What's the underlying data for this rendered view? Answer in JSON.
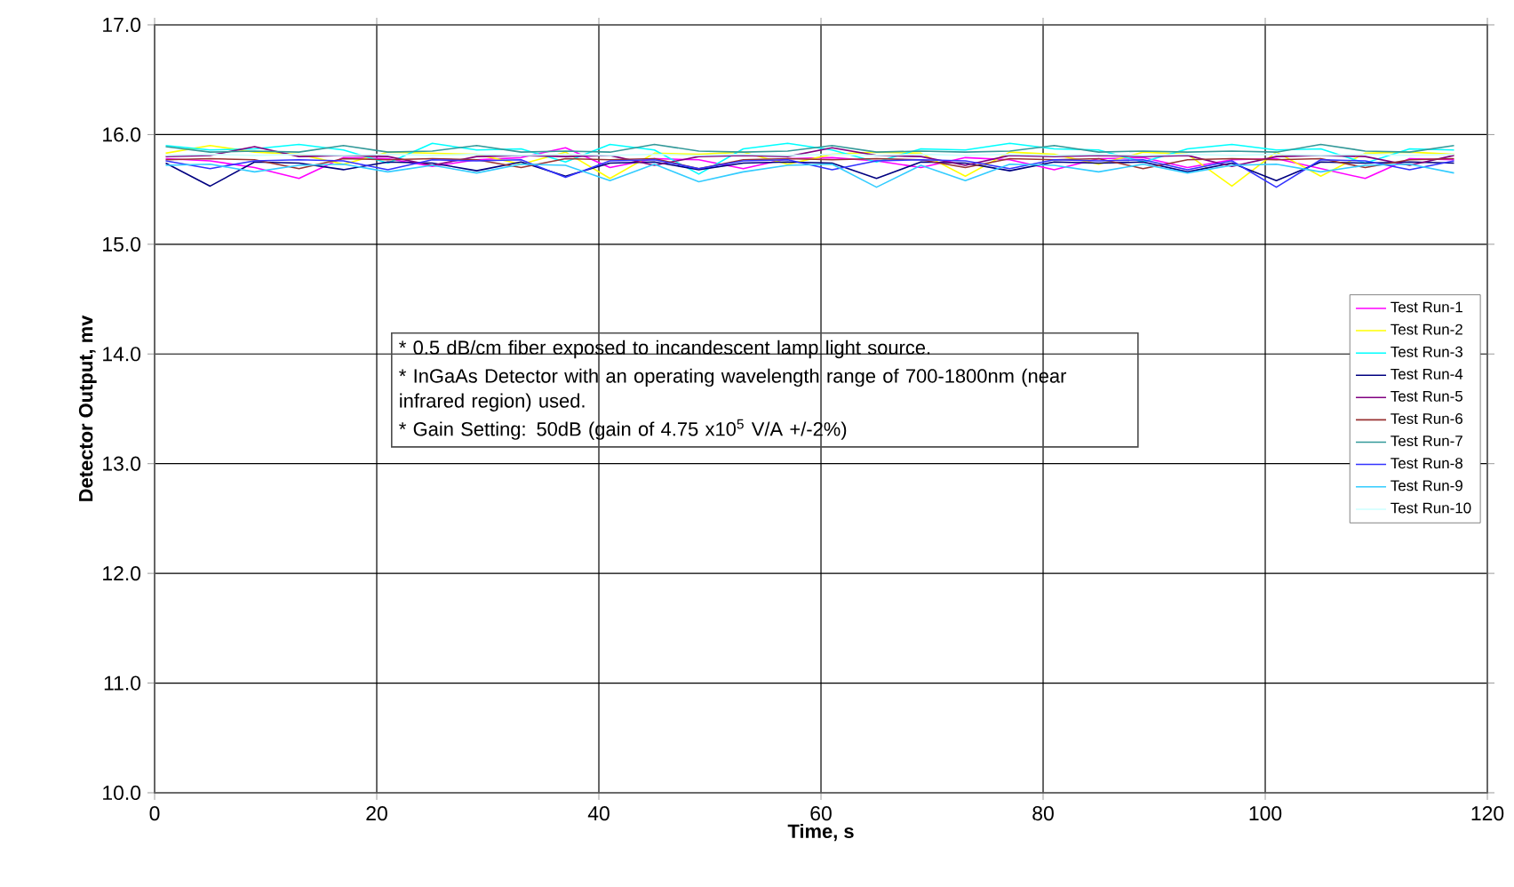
{
  "chart_data": {
    "type": "line",
    "xlabel": "Time, s",
    "ylabel": "Detector Output, mv",
    "x": [
      1,
      5,
      9,
      13,
      17,
      21,
      25,
      29,
      33,
      37,
      41,
      45,
      49,
      53,
      57,
      61,
      65,
      69,
      73,
      77,
      81,
      85,
      89,
      93,
      97,
      101,
      105,
      109,
      113,
      117
    ],
    "series": [
      {
        "name": "Test Run-1",
        "color": "#ff00ff",
        "values": [
          15.78,
          15.76,
          15.7,
          15.6,
          15.79,
          15.78,
          15.71,
          15.77,
          15.79,
          15.88,
          15.7,
          15.78,
          15.77,
          15.69,
          15.78,
          15.79,
          15.76,
          15.7,
          15.79,
          15.77,
          15.68,
          15.78,
          15.79,
          15.7,
          15.77,
          15.78,
          15.69,
          15.6,
          15.78,
          15.77
        ]
      },
      {
        "name": "Test Run-2",
        "color": "#ffff00",
        "values": [
          15.83,
          15.9,
          15.84,
          15.82,
          15.73,
          15.84,
          15.83,
          15.82,
          15.73,
          15.84,
          15.6,
          15.83,
          15.82,
          15.84,
          15.73,
          15.82,
          15.84,
          15.83,
          15.62,
          15.84,
          15.82,
          15.73,
          15.84,
          15.82,
          15.53,
          15.84,
          15.62,
          15.83,
          15.84,
          15.82
        ]
      },
      {
        "name": "Test Run-3",
        "color": "#00ffff",
        "values": [
          15.9,
          15.86,
          15.87,
          15.91,
          15.86,
          15.74,
          15.92,
          15.86,
          15.87,
          15.75,
          15.91,
          15.86,
          15.64,
          15.87,
          15.92,
          15.86,
          15.75,
          15.87,
          15.86,
          15.92,
          15.87,
          15.86,
          15.75,
          15.87,
          15.91,
          15.86,
          15.87,
          15.74,
          15.87,
          15.86
        ]
      },
      {
        "name": "Test Run-4",
        "color": "#000080",
        "values": [
          15.74,
          15.53,
          15.75,
          15.74,
          15.68,
          15.75,
          15.74,
          15.67,
          15.75,
          15.62,
          15.74,
          15.75,
          15.68,
          15.74,
          15.75,
          15.74,
          15.6,
          15.75,
          15.74,
          15.67,
          15.75,
          15.74,
          15.75,
          15.66,
          15.74,
          15.58,
          15.75,
          15.74,
          15.75,
          15.74
        ]
      },
      {
        "name": "Test Run-5",
        "color": "#800080",
        "values": [
          15.8,
          15.81,
          15.89,
          15.8,
          15.81,
          15.8,
          15.72,
          15.8,
          15.81,
          15.8,
          15.81,
          15.72,
          15.8,
          15.81,
          15.8,
          15.88,
          15.81,
          15.8,
          15.72,
          15.81,
          15.8,
          15.81,
          15.8,
          15.81,
          15.71,
          15.8,
          15.81,
          15.8,
          15.72,
          15.81
        ]
      },
      {
        "name": "Test Run-6",
        "color": "#993333",
        "values": [
          15.77,
          15.78,
          15.77,
          15.69,
          15.78,
          15.77,
          15.78,
          15.77,
          15.7,
          15.78,
          15.77,
          15.78,
          15.69,
          15.77,
          15.78,
          15.77,
          15.78,
          15.77,
          15.7,
          15.78,
          15.77,
          15.78,
          15.69,
          15.77,
          15.78,
          15.77,
          15.78,
          15.7,
          15.77,
          15.78
        ]
      },
      {
        "name": "Test Run-7",
        "color": "#339999",
        "values": [
          15.89,
          15.84,
          15.85,
          15.84,
          15.9,
          15.84,
          15.85,
          15.9,
          15.84,
          15.85,
          15.84,
          15.91,
          15.85,
          15.84,
          15.85,
          15.9,
          15.84,
          15.85,
          15.84,
          15.85,
          15.9,
          15.84,
          15.85,
          15.84,
          15.85,
          15.84,
          15.91,
          15.85,
          15.84,
          15.9
        ]
      },
      {
        "name": "Test Run-8",
        "color": "#3333ff",
        "values": [
          15.76,
          15.69,
          15.76,
          15.77,
          15.76,
          15.68,
          15.77,
          15.76,
          15.77,
          15.61,
          15.76,
          15.77,
          15.69,
          15.76,
          15.77,
          15.68,
          15.76,
          15.77,
          15.76,
          15.69,
          15.77,
          15.76,
          15.77,
          15.68,
          15.76,
          15.52,
          15.77,
          15.76,
          15.68,
          15.76
        ]
      },
      {
        "name": "Test Run-9",
        "color": "#33ccff",
        "values": [
          15.72,
          15.73,
          15.66,
          15.72,
          15.73,
          15.66,
          15.72,
          15.65,
          15.73,
          15.72,
          15.58,
          15.73,
          15.57,
          15.66,
          15.72,
          15.73,
          15.52,
          15.72,
          15.58,
          15.73,
          15.72,
          15.66,
          15.73,
          15.65,
          15.72,
          15.73,
          15.66,
          15.72,
          15.73,
          15.65
        ]
      },
      {
        "name": "Test Run-10",
        "color": "#ccffff",
        "values": [
          15.81,
          15.82,
          15.81,
          15.82,
          15.81,
          15.82,
          15.81,
          15.82,
          15.81,
          15.82,
          15.81,
          15.82,
          15.81,
          15.82,
          15.81,
          15.82,
          15.81,
          15.82,
          15.81,
          15.82,
          15.81,
          15.82,
          15.81,
          15.82,
          15.81,
          15.82,
          15.81,
          15.82,
          15.81,
          15.82
        ]
      }
    ],
    "xlim": [
      0,
      120
    ],
    "xticks": [
      0,
      20,
      40,
      60,
      80,
      100,
      120
    ],
    "ylim": [
      10,
      17
    ],
    "yticks": [
      {
        "value": 10,
        "label": "10.0"
      },
      {
        "value": 11,
        "label": "11.0"
      },
      {
        "value": 12,
        "label": "12.0"
      },
      {
        "value": 13,
        "label": "13.0"
      },
      {
        "value": 14,
        "label": "14.0"
      },
      {
        "value": 15,
        "label": "15.0"
      },
      {
        "value": 16,
        "label": "16.0"
      },
      {
        "value": 17,
        "label": "17.0"
      }
    ],
    "grid": true,
    "legend": "right",
    "marker": "none",
    "line_style": "solid",
    "annotations": [
      "* 0.5 dB/cm fiber exposed to incandescent lamp light source.",
      "* InGaAs Detector with an operating wavelength range of 700-1800nm (near infrared region) used.",
      "* Gain Setting: 50dB (gain of 4.75 x10$^{5}$ V/A +/-2%)"
    ]
  }
}
